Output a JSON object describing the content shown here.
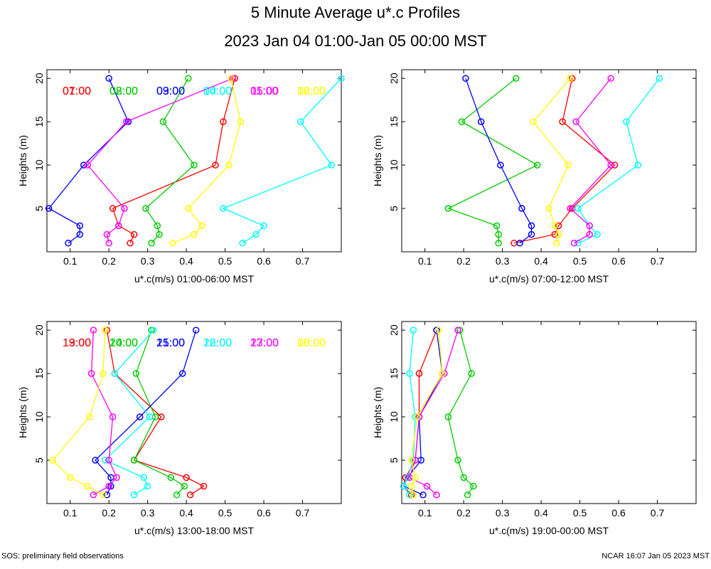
{
  "title": "5 Minute Average u*.c Profiles",
  "subtitle": "2023 Jan 04 01:00-Jan 05 00:00 MST",
  "footer_left": "SOS: preliminary field observations",
  "footer_right": "NCAR 16:07 Jan 05 2023 MST",
  "chart_data": [
    {
      "type": "line",
      "xlabel": "u*.c(m/s) 01:00-06:00 MST",
      "ylabel": "Heights (m)",
      "xlim": [
        0.04,
        0.8
      ],
      "ylim": [
        0,
        21
      ],
      "xticks": [
        0.1,
        0.2,
        0.3,
        0.4,
        0.5,
        0.6,
        0.7
      ],
      "yticks": [
        5,
        10,
        15,
        20
      ],
      "series": [
        {
          "name": "01:00",
          "color": "#ff0000",
          "heights": [
            1,
            2,
            3,
            5,
            10,
            15,
            20
          ],
          "values": [
            0.255,
            0.265,
            0.225,
            0.21,
            0.475,
            0.495,
            0.525
          ]
        },
        {
          "name": "02:00",
          "color": "#00cc00",
          "heights": [
            1,
            2,
            3,
            5,
            10,
            15,
            20
          ],
          "values": [
            0.31,
            0.33,
            0.325,
            0.295,
            0.42,
            0.34,
            0.405
          ]
        },
        {
          "name": "03:00",
          "color": "#0000ff",
          "heights": [
            1,
            2,
            3,
            5,
            10,
            15,
            20
          ],
          "values": [
            0.095,
            0.125,
            0.125,
            0.045,
            0.135,
            0.25,
            0.2
          ]
        },
        {
          "name": "04:00",
          "color": "#00ffff",
          "heights": [
            1,
            2,
            3,
            5,
            10,
            15,
            20
          ],
          "values": [
            0.545,
            0.58,
            0.6,
            0.495,
            0.775,
            0.695,
            0.8
          ]
        },
        {
          "name": "05:00",
          "color": "#ff00ff",
          "heights": [
            1,
            2,
            3,
            5,
            10,
            15,
            20
          ],
          "values": [
            0.2,
            0.195,
            0.225,
            0.24,
            0.145,
            0.245,
            0.52
          ]
        },
        {
          "name": "06:00",
          "color": "#ffff00",
          "heights": [
            1,
            2,
            3,
            5,
            10,
            15,
            20
          ],
          "values": [
            0.365,
            0.42,
            0.44,
            0.405,
            0.51,
            0.54,
            0.515
          ]
        }
      ]
    },
    {
      "type": "line",
      "xlabel": "u*.c(m/s) 07:00-12:00 MST",
      "ylabel": "Heights (m)",
      "xlim": [
        0.04,
        0.8
      ],
      "ylim": [
        0,
        21
      ],
      "xticks": [
        0.1,
        0.2,
        0.3,
        0.4,
        0.5,
        0.6,
        0.7
      ],
      "yticks": [
        5,
        10,
        15,
        20
      ],
      "series": [
        {
          "name": "07:00",
          "color": "#ff0000",
          "heights": [
            1,
            2,
            3,
            5,
            10,
            15,
            20
          ],
          "values": [
            0.33,
            0.435,
            0.445,
            0.48,
            0.59,
            0.455,
            0.48
          ]
        },
        {
          "name": "08:00",
          "color": "#00cc00",
          "heights": [
            1,
            2,
            3,
            5,
            10,
            15,
            20
          ],
          "values": [
            0.29,
            0.29,
            0.285,
            0.16,
            0.39,
            0.195,
            0.335
          ]
        },
        {
          "name": "09:00",
          "color": "#0000ff",
          "heights": [
            1,
            2,
            3,
            5,
            10,
            15,
            20
          ],
          "values": [
            0.345,
            0.375,
            0.375,
            0.35,
            0.295,
            0.245,
            0.205
          ]
        },
        {
          "name": "10:00",
          "color": "#00ffff",
          "heights": [
            1,
            2,
            3,
            5,
            10,
            15,
            20
          ],
          "values": [
            0.495,
            0.545,
            0.525,
            0.495,
            0.65,
            0.62,
            0.705
          ]
        },
        {
          "name": "11:00",
          "color": "#ff00ff",
          "heights": [
            1,
            2,
            3,
            5,
            10,
            15,
            20
          ],
          "values": [
            0.485,
            0.525,
            0.525,
            0.475,
            0.58,
            0.49,
            0.58
          ]
        },
        {
          "name": "12:00",
          "color": "#ffff00",
          "heights": [
            1,
            2,
            3,
            5,
            10,
            15,
            20
          ],
          "values": [
            0.44,
            0.445,
            0.435,
            0.42,
            0.47,
            0.38,
            0.475
          ]
        }
      ]
    },
    {
      "type": "line",
      "xlabel": "u*.c(m/s) 13:00-18:00 MST",
      "ylabel": "Heights (m)",
      "xlim": [
        0.04,
        0.8
      ],
      "ylim": [
        0,
        21
      ],
      "xticks": [
        0.1,
        0.2,
        0.3,
        0.4,
        0.5,
        0.6,
        0.7
      ],
      "yticks": [
        5,
        10,
        15,
        20
      ],
      "series": [
        {
          "name": "13:00",
          "color": "#ff0000",
          "heights": [
            1,
            2,
            3,
            5,
            10,
            15,
            20
          ],
          "values": [
            0.41,
            0.445,
            0.4,
            0.265,
            0.335,
            0.215,
            0.195
          ]
        },
        {
          "name": "14:00",
          "color": "#00cc00",
          "heights": [
            1,
            2,
            3,
            5,
            10,
            15,
            20
          ],
          "values": [
            0.375,
            0.395,
            0.36,
            0.265,
            0.32,
            0.27,
            0.31
          ]
        },
        {
          "name": "15:00",
          "color": "#0000ff",
          "heights": [
            1,
            2,
            3,
            5,
            10,
            15,
            20
          ],
          "values": [
            0.195,
            0.205,
            0.205,
            0.165,
            0.28,
            0.39,
            0.425
          ]
        },
        {
          "name": "16:00",
          "color": "#00ffff",
          "heights": [
            1,
            2,
            3,
            5,
            10,
            15,
            20
          ],
          "values": [
            0.265,
            0.3,
            0.29,
            0.19,
            0.305,
            0.215,
            0.315
          ]
        },
        {
          "name": "17:00",
          "color": "#ff00ff",
          "heights": [
            1,
            2,
            3,
            5,
            10,
            15,
            20
          ],
          "values": [
            0.16,
            0.2,
            0.22,
            0.2,
            0.21,
            0.155,
            0.16
          ]
        },
        {
          "name": "18:00",
          "color": "#ffff00",
          "heights": [
            1,
            2,
            3,
            5,
            10,
            15,
            20
          ],
          "values": [
            0.185,
            0.145,
            0.1,
            0.055,
            0.15,
            0.185,
            0.19
          ]
        }
      ]
    },
    {
      "type": "line",
      "xlabel": "u*.c(m/s) 19:00-00:00 MST",
      "ylabel": "Heights (m)",
      "xlim": [
        0.04,
        0.8
      ],
      "ylim": [
        0,
        21
      ],
      "xticks": [
        0.1,
        0.2,
        0.3,
        0.4,
        0.5,
        0.6,
        0.7
      ],
      "yticks": [
        5,
        10,
        15,
        20
      ],
      "series": [
        {
          "name": "19:00",
          "color": "#ff0000",
          "heights": [
            1,
            2,
            3,
            5,
            10,
            15,
            20
          ],
          "values": [
            0.065,
            0.045,
            0.05,
            0.075,
            0.085,
            0.085,
            0.13
          ]
        },
        {
          "name": "20:00",
          "color": "#00cc00",
          "heights": [
            1,
            2,
            3,
            5,
            10,
            15,
            20
          ],
          "values": [
            0.21,
            0.225,
            0.2,
            0.185,
            0.16,
            0.22,
            0.19
          ]
        },
        {
          "name": "21:00",
          "color": "#0000ff",
          "heights": [
            1,
            2,
            3,
            5,
            10,
            15,
            20
          ],
          "values": [
            0.095,
            0.045,
            0.055,
            0.09,
            0.085,
            0.145,
            0.13
          ]
        },
        {
          "name": "22:00",
          "color": "#00ffff",
          "heights": [
            1,
            2,
            3,
            5,
            10,
            15,
            20
          ],
          "values": [
            0.06,
            0.045,
            0.055,
            0.07,
            0.075,
            0.06,
            0.07
          ]
        },
        {
          "name": "23:00",
          "color": "#ff00ff",
          "heights": [
            1,
            2,
            3,
            5,
            10,
            15,
            20
          ],
          "values": [
            0.13,
            0.105,
            0.06,
            0.075,
            0.085,
            0.15,
            0.185
          ]
        },
        {
          "name": "00:00",
          "color": "#ffff00",
          "heights": [
            1,
            2,
            3,
            5,
            10,
            15,
            20
          ],
          "values": [
            0.07,
            0.065,
            0.075,
            0.065,
            0.08,
            0.145,
            0.135
          ]
        }
      ]
    }
  ]
}
